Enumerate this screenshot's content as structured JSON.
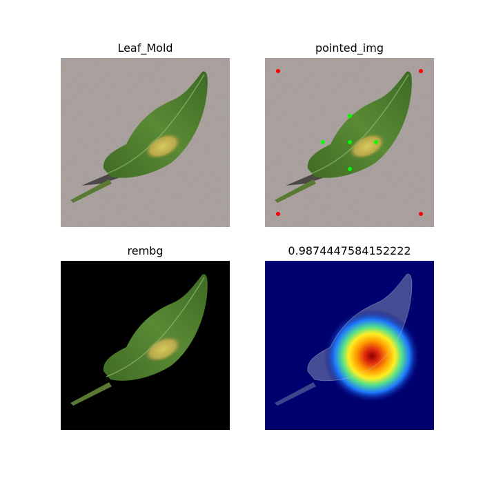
{
  "panels": [
    {
      "title": "Leaf_Mold"
    },
    {
      "title": "pointed_img"
    },
    {
      "title": "rembg"
    },
    {
      "title": "0.9874447584152222"
    }
  ],
  "colors": {
    "background_soil": "#a59a97",
    "leaf_green": "#4f7f2e",
    "lesion_yellow": "#c8bd55",
    "removed_bg": "#000000",
    "heatmap_base": "#00006e",
    "marker_red": "#ff0000",
    "marker_green": "#00ff00"
  }
}
